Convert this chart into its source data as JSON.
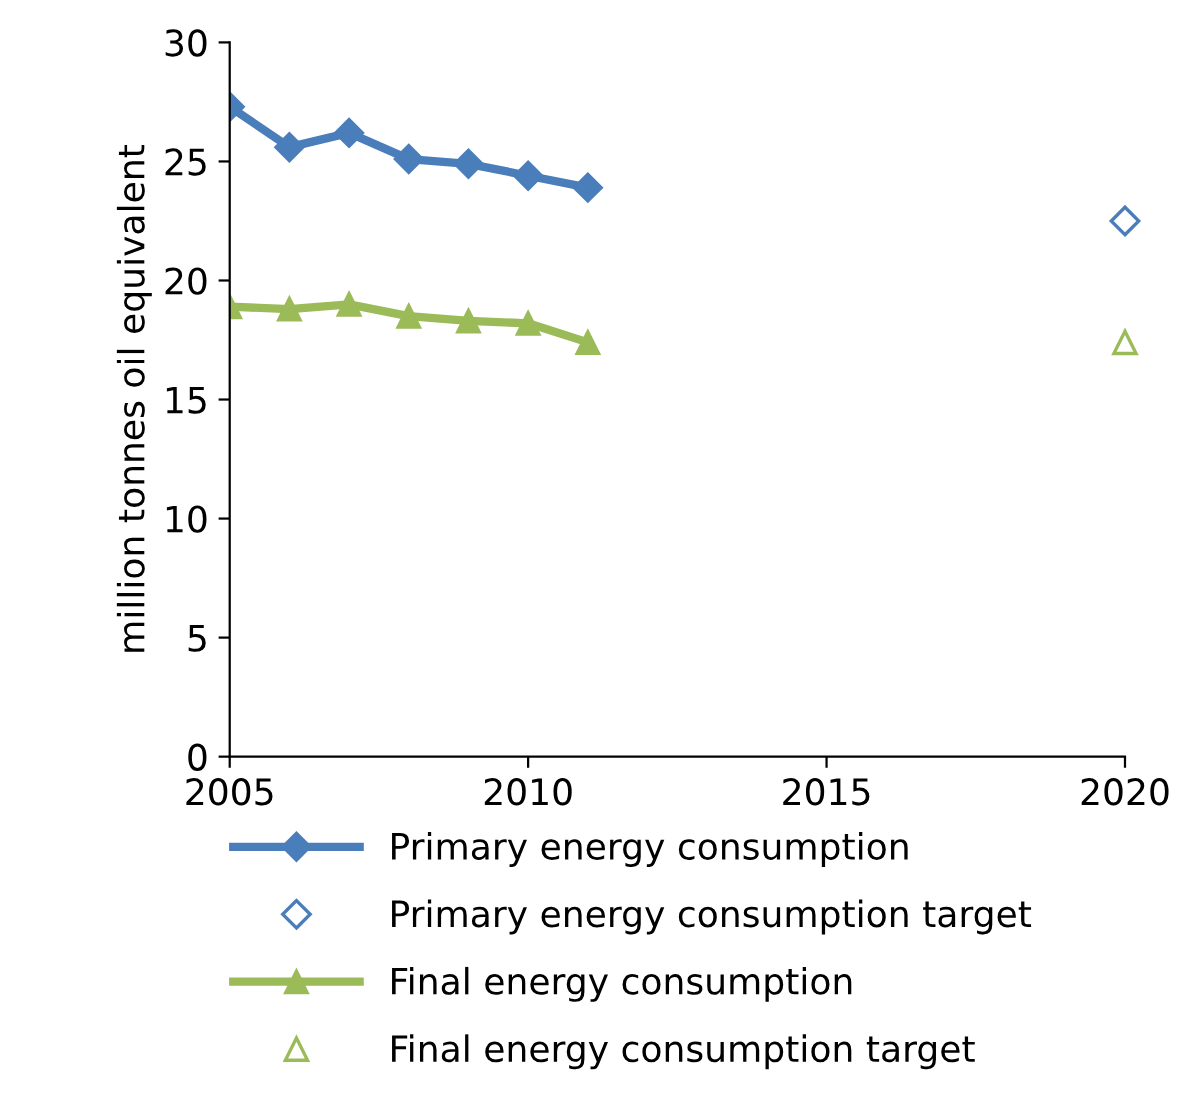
{
  "chart_data": {
    "type": "line",
    "ylabel": "million tonnes oil equivalent",
    "xlim": [
      2005,
      2020
    ],
    "xticks": [
      2005,
      2010,
      2015,
      2020
    ],
    "ylim": [
      0,
      30
    ],
    "yticks": [
      0,
      5,
      10,
      15,
      20,
      25,
      30
    ],
    "grid": false,
    "legend": "bottom",
    "series": [
      {
        "name": "Primary energy consumption",
        "marker": "diamond",
        "color": "#4a7ebb",
        "x": [
          2005,
          2006,
          2007,
          2008,
          2009,
          2010,
          2011
        ],
        "values": [
          27.3,
          25.6,
          26.2,
          25.1,
          24.9,
          24.4,
          23.9
        ]
      },
      {
        "name": "Primary energy consumption target",
        "type": "scatter",
        "marker": "diamond",
        "color": "#4a7ebb",
        "x": [
          2020
        ],
        "values": [
          22.5
        ]
      },
      {
        "name": "Final energy consumption",
        "marker": "triangle",
        "color": "#9bbb59",
        "x": [
          2005,
          2006,
          2007,
          2008,
          2009,
          2010,
          2011
        ],
        "values": [
          18.9,
          18.8,
          19.0,
          18.5,
          18.3,
          18.2,
          17.4
        ]
      },
      {
        "name": "Final energy consumption target",
        "type": "scatter",
        "marker": "triangle",
        "color": "#9bbb59",
        "x": [
          2020
        ],
        "values": [
          17.4
        ]
      }
    ]
  }
}
